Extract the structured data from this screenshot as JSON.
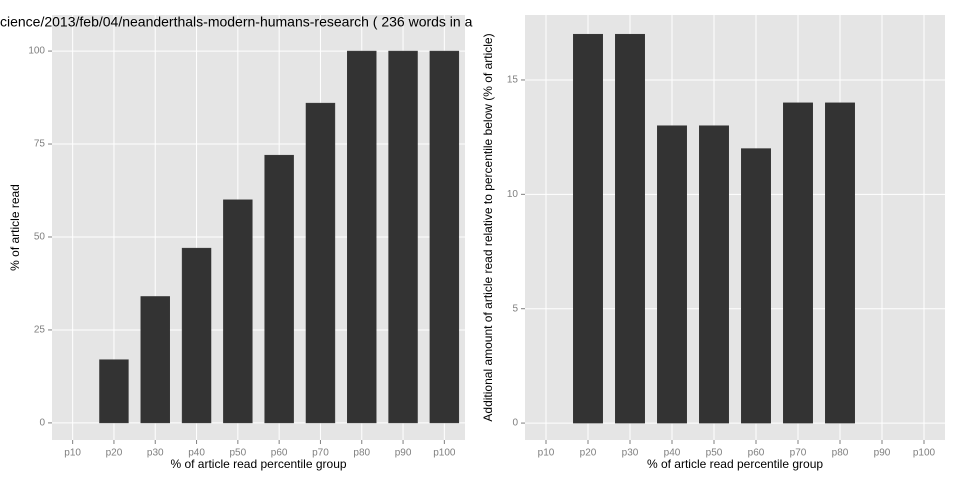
{
  "chart_data": [
    {
      "type": "bar",
      "title": "cience/2013/feb/04/neanderthals-modern-humans-research ( 236 words in a",
      "x_label": "% of article read percentile group",
      "y_label": "% of article read",
      "categories": [
        "p10",
        "p20",
        "p30",
        "p40",
        "p50",
        "p60",
        "p70",
        "p80",
        "p90",
        "p100"
      ],
      "values": [
        0,
        17,
        34,
        47,
        60,
        72,
        86,
        100,
        100,
        100
      ],
      "color": "#333333",
      "ylim": [
        -4.6,
        109.7
      ],
      "yticks": [
        0,
        25,
        50,
        75,
        100
      ],
      "grid": true
    },
    {
      "type": "bar",
      "x_label": "% of article read percentile group",
      "y_label": "Additional amount of article read relative to percentile below (% of article)",
      "categories": [
        "p10",
        "p20",
        "p30",
        "p40",
        "p50",
        "p60",
        "p70",
        "p80",
        "p90",
        "p100"
      ],
      "values": [
        0,
        17,
        17,
        13,
        13,
        12,
        14,
        14,
        0,
        0
      ],
      "color": "#333333",
      "ylim": [
        -0.74,
        17.84
      ],
      "yticks": [
        0,
        5,
        10,
        15
      ],
      "grid": true
    }
  ]
}
